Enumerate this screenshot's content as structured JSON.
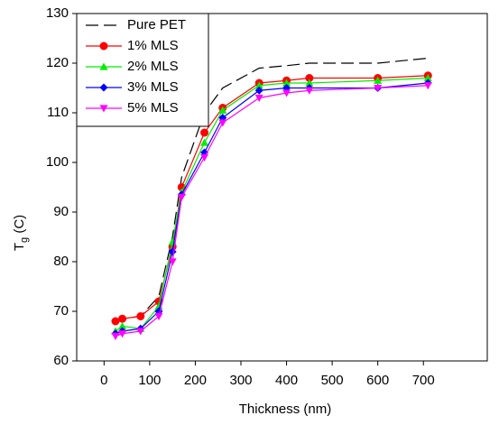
{
  "chart_data": {
    "type": "line",
    "xlabel": "Thickness (nm)",
    "ylabel": [
      "T",
      "g",
      " (C)"
    ],
    "x": [
      25,
      40,
      80,
      120,
      150,
      170,
      220,
      260,
      340,
      400,
      450,
      600,
      710
    ],
    "series": [
      {
        "name": "Pure PET",
        "color": "#000000",
        "linestyle": "dashed",
        "marker": "none",
        "values": [
          68,
          68.5,
          69,
          73,
          85,
          97,
          110,
          115,
          119,
          119.5,
          120,
          120,
          121
        ]
      },
      {
        "name": "1% MLS",
        "color": "#ff0000",
        "linestyle": "solid",
        "marker": "circle",
        "values": [
          68,
          68.5,
          69,
          72,
          83,
          95,
          106,
          111,
          116,
          116.5,
          117,
          117,
          117.5
        ]
      },
      {
        "name": "2% MLS",
        "color": "#00ee00",
        "linestyle": "solid",
        "marker": "triangle-up",
        "values": [
          66,
          67,
          66.5,
          71,
          84,
          94,
          104,
          110.5,
          115.5,
          116,
          116,
          116.5,
          117
        ]
      },
      {
        "name": "3% MLS",
        "color": "#0000ff",
        "linestyle": "solid",
        "marker": "diamond",
        "values": [
          65.5,
          66,
          66.5,
          70,
          82,
          93.5,
          102,
          109,
          114.5,
          115,
          115,
          115,
          116
        ]
      },
      {
        "name": "5% MLS",
        "color": "#ff00ff",
        "linestyle": "solid",
        "marker": "triangle-down",
        "values": [
          65,
          65.5,
          66,
          69,
          80,
          93,
          101,
          108,
          113,
          114,
          114.5,
          115,
          115.5
        ]
      }
    ],
    "xlim": [
      -60,
      840
    ],
    "xticks": [
      0,
      100,
      200,
      300,
      400,
      500,
      600,
      700
    ],
    "ylim": [
      60,
      130
    ],
    "yticks": [
      60,
      70,
      80,
      90,
      100,
      110,
      120,
      130
    ],
    "grid": false,
    "legend": "upper left"
  }
}
